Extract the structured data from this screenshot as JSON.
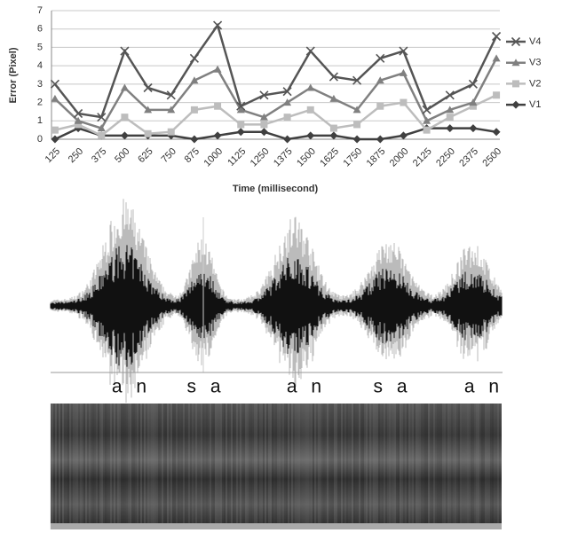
{
  "chart_data": {
    "type": "line",
    "x_label": "Time (millisecond)",
    "y_label": "Error (Pixel)",
    "categories": [
      "125",
      "250",
      "375",
      "500",
      "625",
      "750",
      "875",
      "1000",
      "1125",
      "1250",
      "1375",
      "1500",
      "1625",
      "1750",
      "1875",
      "2000",
      "2125",
      "2250",
      "2375",
      "2500"
    ],
    "series": [
      {
        "name": "V4",
        "color": "#555555",
        "marker": "x",
        "values": [
          3.0,
          1.4,
          1.2,
          4.8,
          2.8,
          2.4,
          4.4,
          6.2,
          1.8,
          2.4,
          2.6,
          4.8,
          3.4,
          3.2,
          4.4,
          4.8,
          1.6,
          2.4,
          3.0,
          5.6
        ]
      },
      {
        "name": "V3",
        "color": "#808080",
        "marker": "triangle",
        "values": [
          2.2,
          1.0,
          0.6,
          2.8,
          1.6,
          1.6,
          3.2,
          3.8,
          1.6,
          1.2,
          2.0,
          2.8,
          2.2,
          1.6,
          3.2,
          3.6,
          1.0,
          1.6,
          2.0,
          4.4
        ]
      },
      {
        "name": "V2",
        "color": "#bdbdbd",
        "marker": "square",
        "values": [
          0.5,
          0.8,
          0.2,
          1.2,
          0.3,
          0.4,
          1.6,
          1.8,
          0.8,
          0.8,
          1.2,
          1.6,
          0.6,
          0.8,
          1.8,
          2.0,
          0.5,
          1.2,
          1.8,
          2.4
        ]
      },
      {
        "name": "V1",
        "color": "#404040",
        "marker": "diamond",
        "values": [
          0.0,
          0.6,
          0.2,
          0.2,
          0.2,
          0.2,
          0.0,
          0.2,
          0.4,
          0.4,
          0.0,
          0.2,
          0.2,
          0.0,
          0.0,
          0.2,
          0.6,
          0.6,
          0.6,
          0.4
        ]
      }
    ],
    "ylim": [
      0,
      7
    ],
    "yticks": [
      0,
      1,
      2,
      3,
      4,
      5,
      6,
      7
    ],
    "grid": true,
    "legend": "right",
    "annotations": [
      "a n",
      "s a",
      "a n",
      "s a",
      "a n"
    ]
  }
}
